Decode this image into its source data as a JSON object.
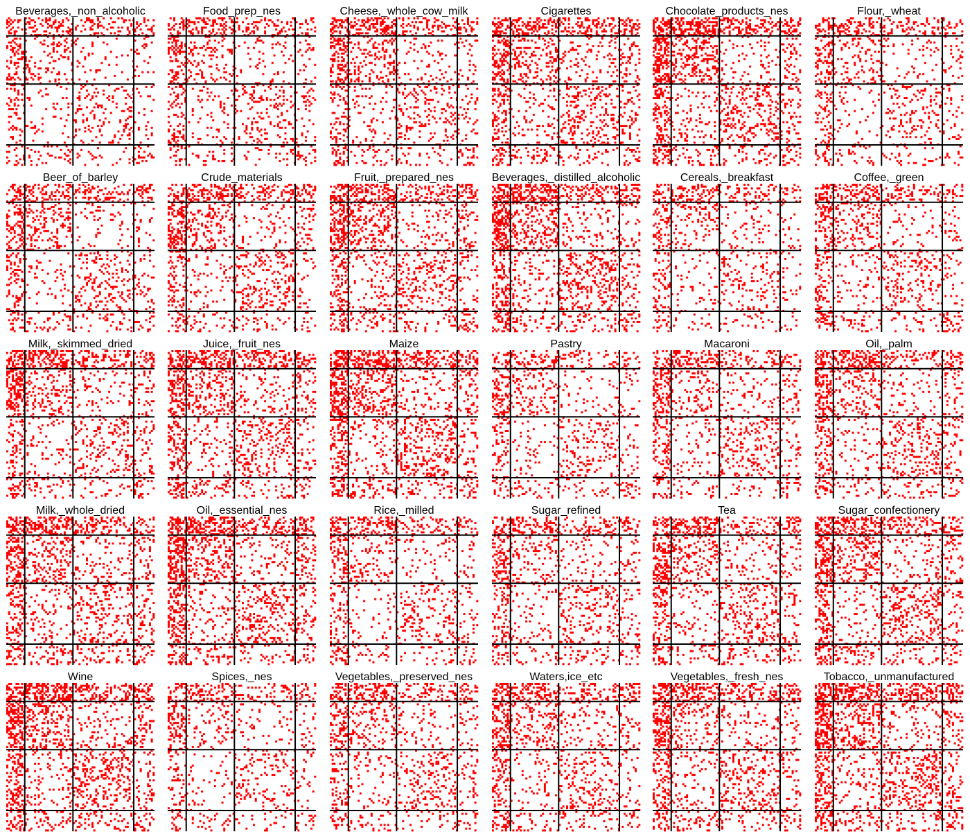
{
  "chart_data": {
    "type": "heatmap",
    "layout": {
      "rows": 5,
      "cols": 6
    },
    "fill_color": "#ff0000",
    "background_color": "#ffffff",
    "divider_color": "#000000",
    "panels": [
      {
        "title": "Beverages,_non_alcoholic"
      },
      {
        "title": "Food_prep_nes"
      },
      {
        "title": "Cheese,_whole_cow_milk"
      },
      {
        "title": "Cigarettes"
      },
      {
        "title": "Chocolate_products_nes"
      },
      {
        "title": "Flour,_wheat"
      },
      {
        "title": "Beer_of_barley"
      },
      {
        "title": "Crude_materials"
      },
      {
        "title": "Fruit,_prepared_nes"
      },
      {
        "title": "Beverages,_distilled_alcoholic"
      },
      {
        "title": "Cereals,_breakfast"
      },
      {
        "title": "Coffee,_green"
      },
      {
        "title": "Milk,_skimmed_dried"
      },
      {
        "title": "Juice,_fruit_nes"
      },
      {
        "title": "Maize"
      },
      {
        "title": "Pastry"
      },
      {
        "title": "Macaroni"
      },
      {
        "title": "Oil,_palm"
      },
      {
        "title": "Milk,_whole_dried"
      },
      {
        "title": "Oil,_essential_nes"
      },
      {
        "title": "Rice,_milled"
      },
      {
        "title": "Sugar_refined"
      },
      {
        "title": "Tea"
      },
      {
        "title": "Sugar_confectionery"
      },
      {
        "title": "Wine"
      },
      {
        "title": "Spices,_nes"
      },
      {
        "title": "Vegetables,_preserved_nes"
      },
      {
        "title": "Waters,ice_etc"
      },
      {
        "title": "Vegetables,_fresh_nes"
      },
      {
        "title": "Tobacco,_unmanufactured"
      }
    ]
  }
}
